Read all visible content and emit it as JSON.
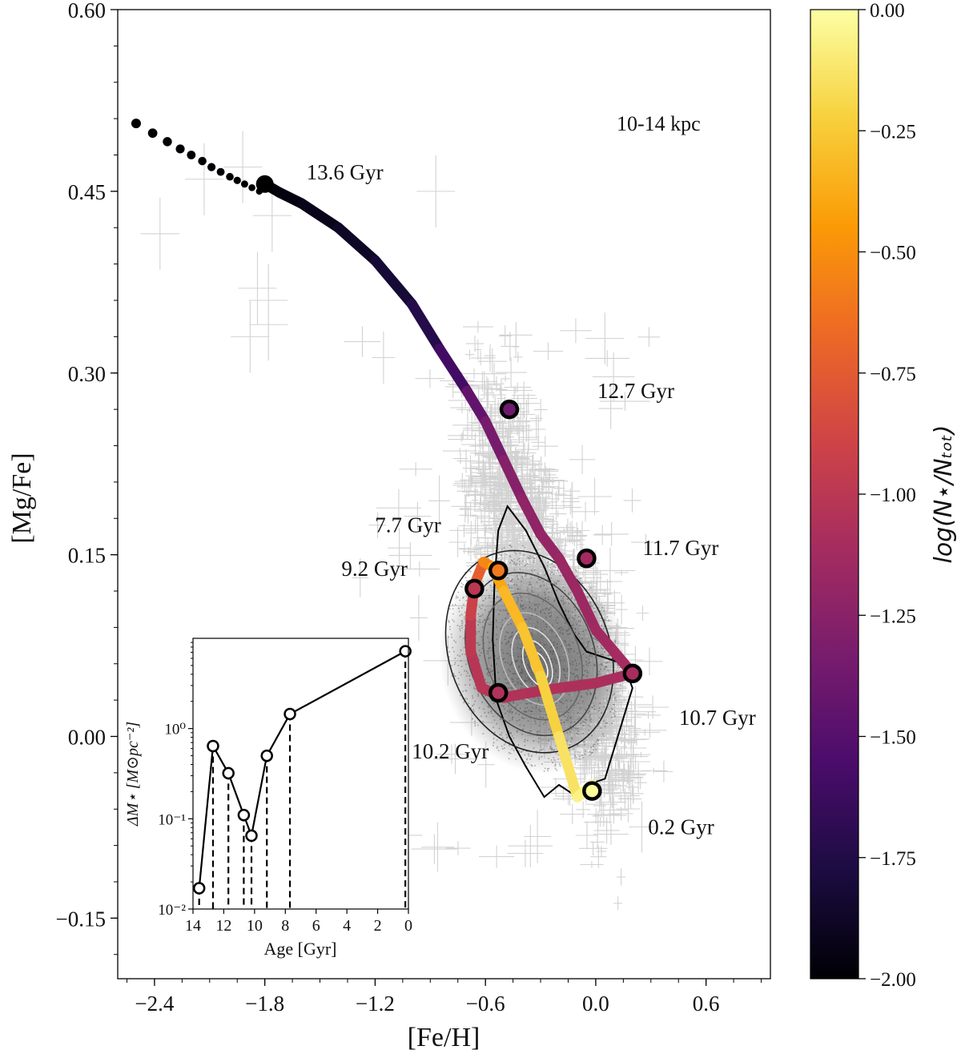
{
  "chart_data": [
    {
      "type": "scatter",
      "id": "main",
      "xlabel": "[Fe/H]",
      "ylabel": "[Mg/Fe]",
      "xlim": [
        -2.6,
        0.95
      ],
      "ylim": [
        -0.2,
        0.6
      ],
      "xticks": [
        -2.4,
        -1.8,
        -1.2,
        -0.6,
        0.0,
        0.6
      ],
      "xtick_labels": [
        "−2.4",
        "−1.8",
        "−1.2",
        "−0.6",
        "0.0",
        "0.6"
      ],
      "yticks": [
        -0.15,
        0.0,
        0.15,
        0.3,
        0.45,
        0.6
      ],
      "ytick_labels": [
        "−0.15",
        "0.00",
        "0.15",
        "0.30",
        "0.45",
        "0.60"
      ],
      "region_label": "10-14 kpc",
      "track": [
        [
          -2.5,
          0.506
        ],
        [
          -2.41,
          0.498
        ],
        [
          -2.33,
          0.491
        ],
        [
          -2.26,
          0.485
        ],
        [
          -2.2,
          0.48
        ],
        [
          -2.14,
          0.475
        ],
        [
          -2.09,
          0.47
        ],
        [
          -2.04,
          0.466
        ],
        [
          -1.99,
          0.462
        ],
        [
          -1.95,
          0.459
        ],
        [
          -1.91,
          0.456
        ],
        [
          -1.87,
          0.453
        ],
        [
          -1.83,
          0.45
        ],
        [
          -1.8,
          0.456
        ],
        [
          -1.72,
          0.449
        ],
        [
          -1.6,
          0.44
        ],
        [
          -1.4,
          0.42
        ],
        [
          -1.2,
          0.393
        ],
        [
          -1.0,
          0.357
        ],
        [
          -0.85,
          0.32
        ],
        [
          -0.7,
          0.285
        ],
        [
          -0.6,
          0.26
        ],
        [
          -0.5,
          0.228
        ],
        [
          -0.4,
          0.196
        ],
        [
          -0.3,
          0.167
        ],
        [
          -0.2,
          0.147
        ],
        [
          -0.1,
          0.12
        ],
        [
          0.0,
          0.088
        ],
        [
          0.1,
          0.07
        ],
        [
          0.2,
          0.052
        ],
        [
          0.0,
          0.044
        ],
        [
          -0.2,
          0.04
        ],
        [
          -0.4,
          0.035
        ],
        [
          -0.5,
          0.032
        ],
        [
          -0.62,
          0.04
        ],
        [
          -0.68,
          0.07
        ],
        [
          -0.68,
          0.1
        ],
        [
          -0.66,
          0.125
        ],
        [
          -0.61,
          0.144
        ],
        [
          -0.56,
          0.14
        ],
        [
          -0.5,
          0.12
        ],
        [
          -0.4,
          0.09
        ],
        [
          -0.3,
          0.05
        ],
        [
          -0.2,
          0.0
        ],
        [
          -0.1,
          -0.05
        ],
        [
          -0.02,
          -0.04
        ]
      ],
      "track_log_density": [
        -2.0,
        -2.0,
        -2.0,
        -2.0,
        -2.0,
        -2.0,
        -2.0,
        -2.0,
        -2.0,
        -2.0,
        -2.0,
        -2.0,
        -2.0,
        -2.0,
        -1.98,
        -1.95,
        -1.9,
        -1.85,
        -1.78,
        -1.68,
        -1.5,
        -1.38,
        -1.3,
        -1.24,
        -1.2,
        -1.18,
        -1.16,
        -1.14,
        -1.12,
        -1.1,
        -1.08,
        -1.06,
        -1.05,
        -1.05,
        -1.03,
        -1.0,
        -0.98,
        -0.85,
        -0.62,
        -0.45,
        -0.35,
        -0.3,
        -0.25,
        -0.18,
        -0.1,
        -0.03
      ],
      "age_markers": [
        {
          "feh": -1.8,
          "mgfe": 0.456,
          "label": "13.6 Gyr"
        },
        {
          "feh": -0.47,
          "mgfe": 0.27,
          "label": "12.7 Gyr"
        },
        {
          "feh": -0.05,
          "mgfe": 0.147,
          "label": "11.7 Gyr"
        },
        {
          "feh": 0.2,
          "mgfe": 0.052,
          "label": "10.7 Gyr"
        },
        {
          "feh": -0.53,
          "mgfe": 0.036,
          "label": "10.2 Gyr"
        },
        {
          "feh": -0.66,
          "mgfe": 0.122,
          "label": "9.2 Gyr"
        },
        {
          "feh": -0.53,
          "mgfe": 0.137,
          "label": "7.7 Gyr"
        },
        {
          "feh": -0.02,
          "mgfe": -0.045,
          "label": "0.2 Gyr"
        }
      ],
      "marker_log_density": [
        -2.0,
        -1.38,
        -1.12,
        -1.1,
        -1.05,
        -1.0,
        -0.6,
        -0.02
      ]
    },
    {
      "type": "line",
      "id": "inset",
      "xlabel": "Age [Gyr]",
      "ylabel": "ΔM⋆ [M⊙pc⁻²]",
      "xlim": [
        14,
        0
      ],
      "ylim_log10": [
        -2,
        1
      ],
      "xticks": [
        14,
        12,
        10,
        8,
        6,
        4,
        2,
        0
      ],
      "xtick_labels": [
        "14",
        "12",
        "10",
        "8",
        "6",
        "4",
        "2",
        "0"
      ],
      "yticks_log10": [
        -2,
        -1,
        0
      ],
      "ytick_labels": [
        "10⁻²",
        "10⁻¹",
        "10⁰"
      ],
      "x": [
        13.6,
        12.7,
        11.7,
        10.7,
        10.2,
        9.2,
        7.7,
        0.2
      ],
      "values": [
        0.017,
        0.64,
        0.32,
        0.11,
        0.065,
        0.5,
        1.45,
        7.2
      ]
    },
    {
      "type": "colorbar",
      "id": "colorbar",
      "label": "log(N⋆/Nₜₒₜ)",
      "range": [
        -2.0,
        0.0
      ],
      "ticks": [
        0.0,
        -0.25,
        -0.5,
        -0.75,
        -1.0,
        -1.25,
        -1.5,
        -1.75,
        -2.0
      ],
      "tick_labels": [
        "0.00",
        "−0.25",
        "−0.50",
        "−0.75",
        "−1.00",
        "−1.25",
        "−1.50",
        "−1.75",
        "−2.00"
      ],
      "colormap": [
        "#000004",
        "#1b0c41",
        "#4a0c6b",
        "#781c6d",
        "#a52c60",
        "#cf4446",
        "#ed6925",
        "#fb9b06",
        "#f7d13d",
        "#fcffa4"
      ]
    }
  ]
}
